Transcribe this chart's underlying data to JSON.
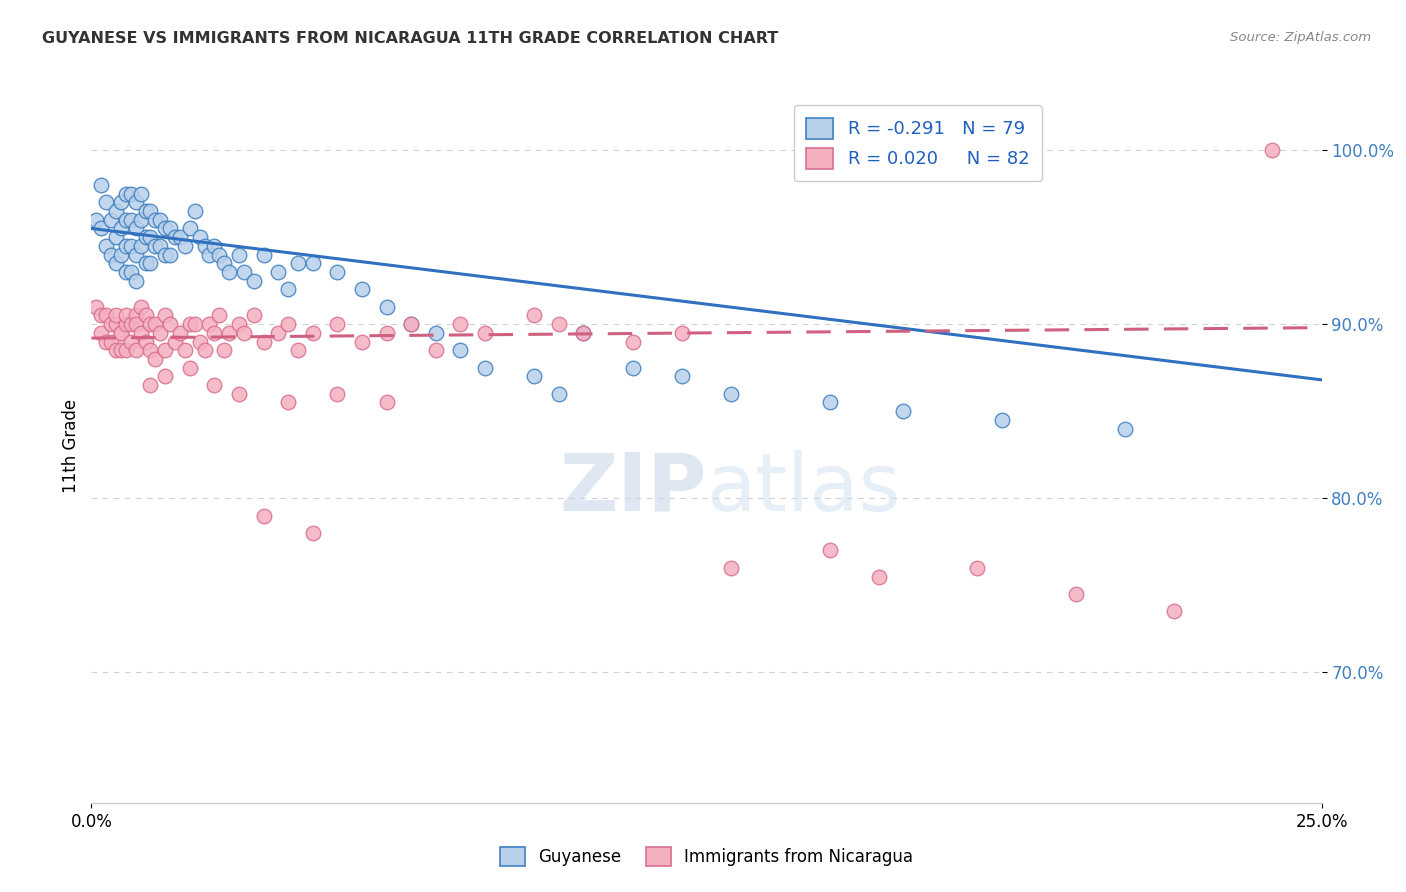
{
  "title": "GUYANESE VS IMMIGRANTS FROM NICARAGUA 11TH GRADE CORRELATION CHART",
  "source": "Source: ZipAtlas.com",
  "ylabel": "11th Grade",
  "yticks": [
    0.7,
    0.8,
    0.9,
    1.0
  ],
  "ytick_labels": [
    "70.0%",
    "80.0%",
    "90.0%",
    "100.0%"
  ],
  "xtick_labels": [
    "0.0%",
    "25.0%"
  ],
  "legend_blue_r": "R = -0.291",
  "legend_blue_n": "N = 79",
  "legend_pink_r": "R = 0.020",
  "legend_pink_n": "N = 82",
  "legend_label_blue": "Guyanese",
  "legend_label_pink": "Immigrants from Nicaragua",
  "watermark_zip": "ZIP",
  "watermark_atlas": "atlas",
  "blue_fill": "#b8d0ea",
  "pink_fill": "#f5b0c0",
  "blue_edge": "#4080c0",
  "pink_edge": "#d87090",
  "blue_line": "#3070c0",
  "pink_line": "#d06080",
  "grid_color": "#cccccc",
  "bg": "#ffffff",
  "xlim": [
    0.0,
    0.25
  ],
  "ylim": [
    0.625,
    1.035
  ],
  "blue_x": [
    0.001,
    0.002,
    0.002,
    0.003,
    0.003,
    0.004,
    0.004,
    0.005,
    0.005,
    0.005,
    0.006,
    0.006,
    0.006,
    0.007,
    0.007,
    0.007,
    0.007,
    0.008,
    0.008,
    0.008,
    0.008,
    0.009,
    0.009,
    0.009,
    0.009,
    0.01,
    0.01,
    0.01,
    0.011,
    0.011,
    0.011,
    0.012,
    0.012,
    0.012,
    0.013,
    0.013,
    0.014,
    0.014,
    0.015,
    0.015,
    0.016,
    0.016,
    0.017,
    0.018,
    0.019,
    0.02,
    0.021,
    0.022,
    0.023,
    0.024,
    0.025,
    0.026,
    0.027,
    0.028,
    0.03,
    0.031,
    0.033,
    0.035,
    0.038,
    0.04,
    0.042,
    0.045,
    0.05,
    0.055,
    0.06,
    0.065,
    0.07,
    0.075,
    0.08,
    0.09,
    0.095,
    0.1,
    0.11,
    0.12,
    0.13,
    0.15,
    0.165,
    0.185,
    0.21
  ],
  "blue_y": [
    0.96,
    0.98,
    0.955,
    0.97,
    0.945,
    0.96,
    0.94,
    0.965,
    0.95,
    0.935,
    0.97,
    0.955,
    0.94,
    0.975,
    0.96,
    0.945,
    0.93,
    0.975,
    0.96,
    0.945,
    0.93,
    0.97,
    0.955,
    0.94,
    0.925,
    0.975,
    0.96,
    0.945,
    0.965,
    0.95,
    0.935,
    0.965,
    0.95,
    0.935,
    0.96,
    0.945,
    0.96,
    0.945,
    0.955,
    0.94,
    0.955,
    0.94,
    0.95,
    0.95,
    0.945,
    0.955,
    0.965,
    0.95,
    0.945,
    0.94,
    0.945,
    0.94,
    0.935,
    0.93,
    0.94,
    0.93,
    0.925,
    0.94,
    0.93,
    0.92,
    0.935,
    0.935,
    0.93,
    0.92,
    0.91,
    0.9,
    0.895,
    0.885,
    0.875,
    0.87,
    0.86,
    0.895,
    0.875,
    0.87,
    0.86,
    0.855,
    0.85,
    0.845,
    0.84
  ],
  "pink_x": [
    0.001,
    0.002,
    0.002,
    0.003,
    0.003,
    0.004,
    0.004,
    0.005,
    0.005,
    0.005,
    0.006,
    0.006,
    0.006,
    0.007,
    0.007,
    0.007,
    0.008,
    0.008,
    0.009,
    0.009,
    0.009,
    0.01,
    0.01,
    0.011,
    0.011,
    0.012,
    0.012,
    0.013,
    0.013,
    0.014,
    0.015,
    0.015,
    0.016,
    0.017,
    0.018,
    0.019,
    0.02,
    0.021,
    0.022,
    0.023,
    0.024,
    0.025,
    0.026,
    0.027,
    0.028,
    0.03,
    0.031,
    0.033,
    0.035,
    0.038,
    0.04,
    0.042,
    0.045,
    0.05,
    0.055,
    0.06,
    0.065,
    0.07,
    0.075,
    0.08,
    0.09,
    0.095,
    0.1,
    0.11,
    0.12,
    0.13,
    0.15,
    0.16,
    0.18,
    0.2,
    0.22,
    0.24,
    0.012,
    0.015,
    0.02,
    0.025,
    0.03,
    0.04,
    0.05,
    0.06,
    0.035,
    0.045
  ],
  "pink_y": [
    0.91,
    0.905,
    0.895,
    0.905,
    0.89,
    0.9,
    0.89,
    0.9,
    0.885,
    0.905,
    0.895,
    0.885,
    0.895,
    0.9,
    0.905,
    0.885,
    0.9,
    0.89,
    0.905,
    0.9,
    0.885,
    0.91,
    0.895,
    0.905,
    0.89,
    0.9,
    0.885,
    0.9,
    0.88,
    0.895,
    0.905,
    0.885,
    0.9,
    0.89,
    0.895,
    0.885,
    0.9,
    0.9,
    0.89,
    0.885,
    0.9,
    0.895,
    0.905,
    0.885,
    0.895,
    0.9,
    0.895,
    0.905,
    0.89,
    0.895,
    0.9,
    0.885,
    0.895,
    0.9,
    0.89,
    0.895,
    0.9,
    0.885,
    0.9,
    0.895,
    0.905,
    0.9,
    0.895,
    0.89,
    0.895,
    0.76,
    0.77,
    0.755,
    0.76,
    0.745,
    0.735,
    1.0,
    0.865,
    0.87,
    0.875,
    0.865,
    0.86,
    0.855,
    0.86,
    0.855,
    0.79,
    0.78
  ],
  "blue_trend_x": [
    0.0,
    0.25
  ],
  "blue_trend_y": [
    0.955,
    0.868
  ],
  "pink_trend_x": [
    0.0,
    0.25
  ],
  "pink_trend_y": [
    0.892,
    0.898
  ]
}
